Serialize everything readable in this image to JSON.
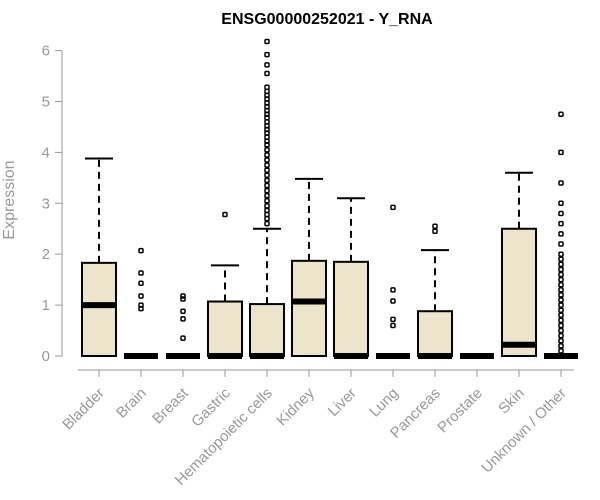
{
  "chart_data": {
    "type": "boxplot",
    "title": "ENSG00000252021 - Y_RNA",
    "ylabel": "Expression",
    "xlabel": "",
    "ylim": [
      0,
      6.2
    ],
    "yticks": [
      0,
      1,
      2,
      3,
      4,
      5,
      6
    ],
    "grid": false,
    "categories": [
      "Bladder",
      "Brain",
      "Breast",
      "Gastric",
      "Hematopoietic cells",
      "Kidney",
      "Liver",
      "Lung",
      "Pancreas",
      "Prostate",
      "Skin",
      "Unknown / Other"
    ],
    "boxes": [
      {
        "q1": 0,
        "median": 1.0,
        "q3": 1.83,
        "whisker_low": 0,
        "whisker_high": 3.88,
        "outliers": []
      },
      {
        "q1": 0,
        "median": 0,
        "q3": 0,
        "whisker_low": 0,
        "whisker_high": 0,
        "outliers": [
          0.93,
          1.0,
          1.18,
          1.43,
          1.63,
          2.07
        ]
      },
      {
        "q1": 0,
        "median": 0,
        "q3": 0,
        "whisker_low": 0,
        "whisker_high": 0,
        "outliers": [
          0.35,
          0.73,
          0.88,
          1.12,
          1.18
        ]
      },
      {
        "q1": 0,
        "median": 0,
        "q3": 1.07,
        "whisker_low": 0,
        "whisker_high": 1.78,
        "outliers": [
          2.78
        ]
      },
      {
        "q1": 0,
        "median": 0,
        "q3": 1.02,
        "whisker_low": 0,
        "whisker_high": 2.5,
        "outliers": [
          2.6,
          2.7,
          2.78,
          2.86,
          2.95,
          3.05,
          3.15,
          3.25,
          3.35,
          3.45,
          3.55,
          3.65,
          3.75,
          3.85,
          3.95,
          4.05,
          4.15,
          4.22,
          4.3,
          4.38,
          4.45,
          4.52,
          4.6,
          4.68,
          4.75,
          4.82,
          4.9,
          4.97,
          5.05,
          5.12,
          5.2,
          5.28,
          5.55,
          5.72,
          5.92,
          6.18
        ]
      },
      {
        "q1": 0,
        "median": 1.07,
        "q3": 1.87,
        "whisker_low": 0,
        "whisker_high": 3.48,
        "outliers": []
      },
      {
        "q1": 0,
        "median": 0,
        "q3": 1.85,
        "whisker_low": 0,
        "whisker_high": 3.1,
        "outliers": []
      },
      {
        "q1": 0,
        "median": 0,
        "q3": 0,
        "whisker_low": 0,
        "whisker_high": 0,
        "outliers": [
          0.6,
          0.72,
          1.08,
          1.3,
          2.92
        ]
      },
      {
        "q1": 0,
        "median": 0,
        "q3": 0.88,
        "whisker_low": 0,
        "whisker_high": 2.08,
        "outliers": [
          2.45,
          2.55
        ]
      },
      {
        "q1": 0,
        "median": 0,
        "q3": 0,
        "whisker_low": 0,
        "whisker_high": 0,
        "outliers": []
      },
      {
        "q1": 0,
        "median": 0.22,
        "q3": 2.5,
        "whisker_low": 0,
        "whisker_high": 3.6,
        "outliers": []
      },
      {
        "q1": 0,
        "median": 0,
        "q3": 0,
        "whisker_low": 0,
        "whisker_high": 0,
        "outliers": [
          0.1,
          0.2,
          0.3,
          0.4,
          0.5,
          0.6,
          0.7,
          0.8,
          0.9,
          1.0,
          1.1,
          1.2,
          1.3,
          1.4,
          1.5,
          1.6,
          1.7,
          1.8,
          1.9,
          2.0,
          2.2,
          2.4,
          2.6,
          2.8,
          3.0,
          3.4,
          4.0,
          4.75
        ]
      }
    ]
  }
}
